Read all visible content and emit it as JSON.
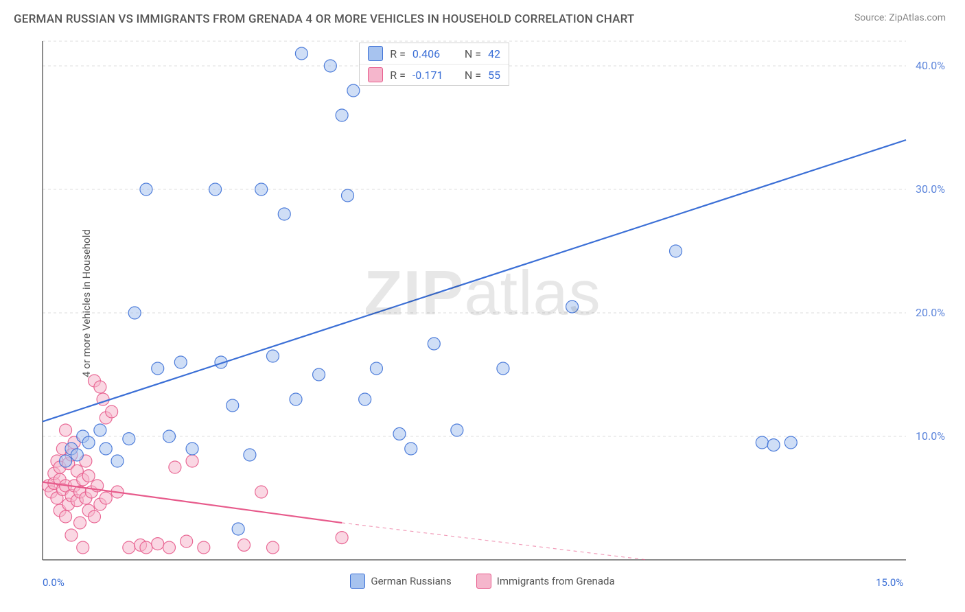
{
  "title": "GERMAN RUSSIAN VS IMMIGRANTS FROM GRENADA 4 OR MORE VEHICLES IN HOUSEHOLD CORRELATION CHART",
  "source": "Source: ZipAtlas.com",
  "watermark": "ZIPatlas",
  "ylabel": "4 or more Vehicles in Household",
  "chart": {
    "type": "scatter",
    "background_color": "#ffffff",
    "grid_color": "#dcdcdc",
    "axis_color": "#666666",
    "xlim": [
      0,
      15
    ],
    "ylim": [
      0,
      42
    ],
    "x_ticks": [
      {
        "v": 0,
        "label": "0.0%",
        "color": "#3b6fd6"
      },
      {
        "v": 15,
        "label": "15.0%",
        "color": "#3b6fd6"
      }
    ],
    "y_ticks": [
      {
        "v": 10,
        "label": "10.0%"
      },
      {
        "v": 20,
        "label": "20.0%"
      },
      {
        "v": 30,
        "label": "30.0%"
      },
      {
        "v": 40,
        "label": "40.0%"
      }
    ],
    "y_tick_color": "#5b84db",
    "marker_radius": 9,
    "marker_opacity": 0.55,
    "marker_stroke_opacity": 0.9,
    "line_width": 2.2,
    "series": [
      {
        "name": "German Russians",
        "color": "#3b6fd6",
        "fill": "#a7c3ef",
        "R": "0.406",
        "N": "42",
        "trend": {
          "x1": 0,
          "y1": 11.2,
          "x2": 15,
          "y2": 34,
          "dash": false
        },
        "points": [
          [
            0.4,
            8.0
          ],
          [
            0.5,
            9.0
          ],
          [
            0.6,
            8.5
          ],
          [
            0.7,
            10.0
          ],
          [
            0.8,
            9.5
          ],
          [
            1.0,
            10.5
          ],
          [
            1.1,
            9.0
          ],
          [
            1.3,
            8.0
          ],
          [
            1.5,
            9.8
          ],
          [
            1.6,
            20.0
          ],
          [
            1.8,
            30.0
          ],
          [
            2.0,
            15.5
          ],
          [
            2.2,
            10.0
          ],
          [
            2.4,
            16.0
          ],
          [
            2.6,
            9.0
          ],
          [
            3.0,
            30.0
          ],
          [
            3.1,
            16.0
          ],
          [
            3.3,
            12.5
          ],
          [
            3.4,
            2.5
          ],
          [
            3.6,
            8.5
          ],
          [
            3.8,
            30.0
          ],
          [
            4.0,
            16.5
          ],
          [
            4.2,
            28.0
          ],
          [
            4.4,
            13.0
          ],
          [
            4.5,
            41.0
          ],
          [
            4.8,
            15.0
          ],
          [
            5.0,
            40.0
          ],
          [
            5.2,
            36.0
          ],
          [
            5.3,
            29.5
          ],
          [
            5.4,
            38.0
          ],
          [
            5.6,
            13.0
          ],
          [
            5.8,
            15.5
          ],
          [
            6.2,
            10.2
          ],
          [
            6.4,
            9.0
          ],
          [
            6.8,
            17.5
          ],
          [
            7.2,
            10.5
          ],
          [
            8.0,
            15.5
          ],
          [
            9.2,
            20.5
          ],
          [
            11.0,
            25.0
          ],
          [
            12.5,
            9.5
          ],
          [
            12.7,
            9.3
          ],
          [
            13.0,
            9.5
          ]
        ]
      },
      {
        "name": "Immigrants from Grenada",
        "color": "#e75a8b",
        "fill": "#f5b6cc",
        "R": "-0.171",
        "N": "55",
        "trend": {
          "x1": 0,
          "y1": 6.3,
          "x2": 5.2,
          "y2": 3.0,
          "dash": false
        },
        "trend_ext": {
          "x1": 5.2,
          "y1": 3.0,
          "x2": 10.5,
          "y2": 0,
          "dash": true
        },
        "points": [
          [
            0.1,
            6.0
          ],
          [
            0.15,
            5.5
          ],
          [
            0.2,
            6.2
          ],
          [
            0.2,
            7.0
          ],
          [
            0.25,
            5.0
          ],
          [
            0.25,
            8.0
          ],
          [
            0.3,
            6.5
          ],
          [
            0.3,
            4.0
          ],
          [
            0.3,
            7.5
          ],
          [
            0.35,
            5.7
          ],
          [
            0.35,
            9.0
          ],
          [
            0.4,
            6.0
          ],
          [
            0.4,
            3.5
          ],
          [
            0.4,
            10.5
          ],
          [
            0.45,
            4.5
          ],
          [
            0.45,
            7.8
          ],
          [
            0.5,
            5.2
          ],
          [
            0.5,
            8.5
          ],
          [
            0.5,
            2.0
          ],
          [
            0.55,
            6.0
          ],
          [
            0.55,
            9.5
          ],
          [
            0.6,
            4.8
          ],
          [
            0.6,
            7.2
          ],
          [
            0.65,
            3.0
          ],
          [
            0.65,
            5.5
          ],
          [
            0.7,
            6.5
          ],
          [
            0.7,
            1.0
          ],
          [
            0.75,
            5.0
          ],
          [
            0.75,
            8.0
          ],
          [
            0.8,
            4.0
          ],
          [
            0.8,
            6.8
          ],
          [
            0.85,
            5.5
          ],
          [
            0.9,
            3.5
          ],
          [
            0.9,
            14.5
          ],
          [
            0.95,
            6.0
          ],
          [
            1.0,
            4.5
          ],
          [
            1.0,
            14.0
          ],
          [
            1.05,
            13.0
          ],
          [
            1.1,
            5.0
          ],
          [
            1.1,
            11.5
          ],
          [
            1.2,
            12.0
          ],
          [
            1.3,
            5.5
          ],
          [
            1.5,
            1.0
          ],
          [
            1.7,
            1.2
          ],
          [
            1.8,
            1.0
          ],
          [
            2.0,
            1.3
          ],
          [
            2.2,
            1.0
          ],
          [
            2.3,
            7.5
          ],
          [
            2.5,
            1.5
          ],
          [
            2.6,
            8.0
          ],
          [
            2.8,
            1.0
          ],
          [
            3.5,
            1.2
          ],
          [
            3.8,
            5.5
          ],
          [
            4.0,
            1.0
          ],
          [
            5.2,
            1.8
          ]
        ]
      }
    ]
  },
  "legend": [
    {
      "label": "German Russians",
      "fill": "#a7c3ef",
      "stroke": "#3b6fd6"
    },
    {
      "label": "Immigrants from Grenada",
      "fill": "#f5b6cc",
      "stroke": "#e75a8b"
    }
  ],
  "stats_box": {
    "rows": [
      {
        "fill": "#a7c3ef",
        "stroke": "#3b6fd6",
        "R": "0.406",
        "N": "42",
        "r_color": "#3b6fd6",
        "n_color": "#3b6fd6"
      },
      {
        "fill": "#f5b6cc",
        "stroke": "#e75a8b",
        "R": "-0.171",
        "N": "55",
        "r_color": "#3b6fd6",
        "n_color": "#3b6fd6"
      }
    ]
  }
}
